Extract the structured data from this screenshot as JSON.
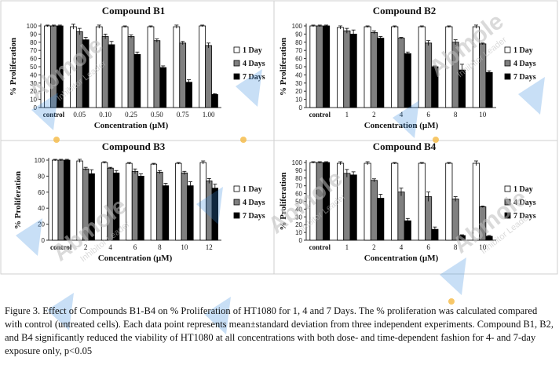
{
  "figure": {
    "caption": "Figure 3. Effect of Compounds B1-B4 on % Proliferation of HT1080 for 1, 4 and 7 Days. The % proliferation was calculated compared with control (untreated cells). Each data point represents mean±standard deviation from three independent experiments. Compound B1, B2, and B4 significantly reduced the viability of HT1080 at all concentrations with both dose- and time-dependent fashion for 4- and 7-day exposure only, p<0.05"
  },
  "watermark": {
    "brand": "Abmole",
    "tagline": "Inhibitor Leader"
  },
  "colors": {
    "day1": "#ffffff",
    "day4": "#808080",
    "day7": "#000000",
    "axis": "#333333"
  },
  "chart_data": [
    {
      "type": "bar",
      "title": "Compound B1",
      "xlabel": "Concentration (µM)",
      "ylabel": "% Proliferation",
      "ylim": [
        0,
        100
      ],
      "yticks": [
        "0",
        "10",
        "20",
        "30",
        "40",
        "50",
        "60",
        "70",
        "80",
        "90",
        "100"
      ],
      "legend_position": "right",
      "categories": [
        "control",
        "0.05",
        "0.10",
        "0.25",
        "0.50",
        "0.75",
        "1.00"
      ],
      "series": [
        {
          "name": "1 Day",
          "values": [
            100,
            99,
            99,
            99,
            99,
            99,
            100
          ],
          "errors": [
            1,
            3,
            2,
            1,
            1,
            2,
            1
          ]
        },
        {
          "name": "4 Days",
          "values": [
            100,
            93,
            87,
            87,
            82,
            79,
            76
          ],
          "errors": [
            1,
            4,
            3,
            2,
            2,
            2,
            3
          ]
        },
        {
          "name": "7 Days",
          "values": [
            100,
            83,
            77,
            65,
            49,
            31,
            16
          ],
          "errors": [
            1,
            3,
            4,
            3,
            2,
            3,
            1
          ]
        }
      ]
    },
    {
      "type": "bar",
      "title": "Compound B2",
      "xlabel": "Concentration (µM)",
      "ylabel": "% Proliferation",
      "ylim": [
        0,
        100
      ],
      "yticks": [
        "0",
        "10",
        "20",
        "30",
        "40",
        "50",
        "60",
        "70",
        "80",
        "90",
        "100"
      ],
      "legend_position": "right",
      "categories": [
        "control",
        "1",
        "2",
        "4",
        "6",
        "8",
        "10"
      ],
      "series": [
        {
          "name": "1 Day",
          "values": [
            100,
            98,
            99,
            99,
            99,
            99,
            99
          ],
          "errors": [
            1,
            2,
            1,
            1,
            1,
            1,
            2
          ]
        },
        {
          "name": "4 Days",
          "values": [
            100,
            94,
            92,
            85,
            79,
            80,
            78
          ],
          "errors": [
            1,
            3,
            2,
            1,
            3,
            3,
            1
          ]
        },
        {
          "name": "7 Days",
          "values": [
            100,
            90,
            85,
            66,
            50,
            46,
            43
          ],
          "errors": [
            1,
            5,
            2,
            2,
            1,
            7,
            2
          ]
        }
      ]
    },
    {
      "type": "bar",
      "title": "Compound B3",
      "xlabel": "Concentration (µM)",
      "ylabel": "% Proliferation",
      "ylim": [
        0,
        100
      ],
      "yticks": [
        "0",
        "20",
        "40",
        "60",
        "80",
        "100"
      ],
      "legend_position": "right",
      "categories": [
        "control",
        "2",
        "4",
        "6",
        "8",
        "10",
        "12"
      ],
      "series": [
        {
          "name": "1 Day",
          "values": [
            100,
            99,
            97,
            96,
            95,
            96,
            97
          ],
          "errors": [
            1,
            2,
            1,
            1,
            1,
            1,
            2
          ]
        },
        {
          "name": "4 Days",
          "values": [
            100,
            89,
            90,
            86,
            85,
            84,
            74
          ],
          "errors": [
            1,
            2,
            1,
            3,
            2,
            2,
            3
          ]
        },
        {
          "name": "7 Days",
          "values": [
            100,
            83,
            84,
            80,
            68,
            68,
            65
          ],
          "errors": [
            1,
            5,
            3,
            3,
            3,
            5,
            5
          ]
        }
      ]
    },
    {
      "type": "bar",
      "title": "Compound B4",
      "xlabel": "Concentration (µM)",
      "ylabel": "% Proliferation",
      "ylim": [
        0,
        100
      ],
      "yticks": [
        "0",
        "10",
        "20",
        "30",
        "40",
        "50",
        "60",
        "70",
        "80",
        "90",
        "100"
      ],
      "legend_position": "right",
      "categories": [
        "control",
        "1",
        "2",
        "4",
        "6",
        "8",
        "10"
      ],
      "series": [
        {
          "name": "1 Day",
          "values": [
            100,
            99,
            99,
            99,
            99,
            99,
            99
          ],
          "errors": [
            1,
            2,
            2,
            1,
            1,
            1,
            3
          ]
        },
        {
          "name": "4 Days",
          "values": [
            100,
            86,
            77,
            62,
            56,
            53,
            43
          ],
          "errors": [
            1,
            5,
            2,
            5,
            6,
            3,
            1
          ]
        },
        {
          "name": "7 Days",
          "values": [
            100,
            84,
            54,
            25,
            14,
            6,
            5
          ],
          "errors": [
            1,
            4,
            5,
            3,
            3,
            1,
            1
          ]
        }
      ]
    }
  ]
}
